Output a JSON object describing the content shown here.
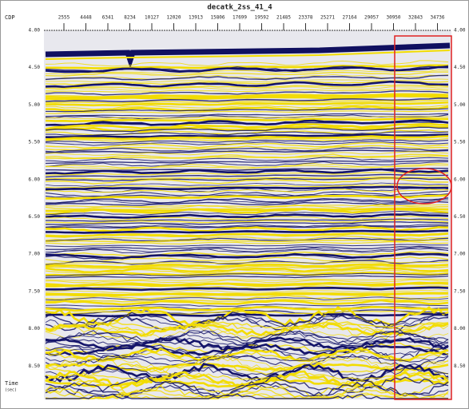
{
  "header": {
    "title": "decatk_2ss_41_4",
    "cdp_label": "CDP"
  },
  "cdp_ticks": [
    "2555",
    "4448",
    "6341",
    "8234",
    "10127",
    "12020",
    "13913",
    "15806",
    "17699",
    "19592",
    "21485",
    "23378",
    "25271",
    "27164",
    "29057",
    "30950",
    "32843",
    "34736"
  ],
  "time_ticks": [
    "4.00",
    "4.50",
    "5.00",
    "5.50",
    "6.00",
    "6.50",
    "7.00",
    "7.50",
    "8.00",
    "8.50"
  ],
  "time_label": "Time",
  "time_unit": "(sec)"
}
